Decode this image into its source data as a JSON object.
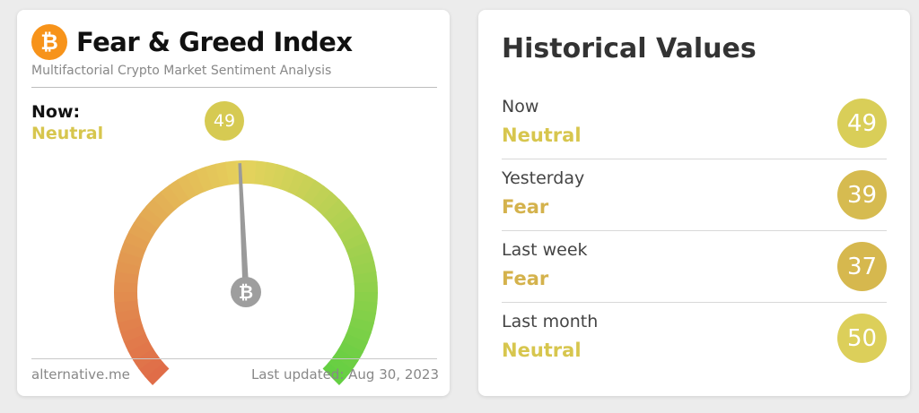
{
  "fear_greed": {
    "icon": "bitcoin-logo",
    "logo_glyph": "₿",
    "title": "Fear & Greed Index",
    "subtitle": "Multifactorial Crypto Market Sentiment Analysis",
    "now_label": "Now:",
    "now_classification": "Neutral",
    "value": "49",
    "value_number": 49,
    "source": "alternative.me",
    "last_updated": "Last updated: Aug 30, 2023",
    "colors": {
      "neutral": "#d7c64e",
      "fear": "#d6b84c",
      "gauge_low": "#e06b48",
      "gauge_mid": "#e5d25c",
      "gauge_high": "#62cf42",
      "bitcoin": "#f7931a"
    }
  },
  "history": {
    "title": "Historical Values",
    "rows": [
      {
        "period": "Now",
        "classification": "Neutral",
        "value": "49",
        "color": "#d9ce58",
        "class_color": "#d7c64e"
      },
      {
        "period": "Yesterday",
        "classification": "Fear",
        "value": "39",
        "color": "#d6bb50",
        "class_color": "#d4b24c"
      },
      {
        "period": "Last week",
        "classification": "Fear",
        "value": "37",
        "color": "#d6b84e",
        "class_color": "#d4b24c"
      },
      {
        "period": "Last month",
        "classification": "Neutral",
        "value": "50",
        "color": "#dccf5a",
        "class_color": "#d7c64e"
      }
    ]
  }
}
